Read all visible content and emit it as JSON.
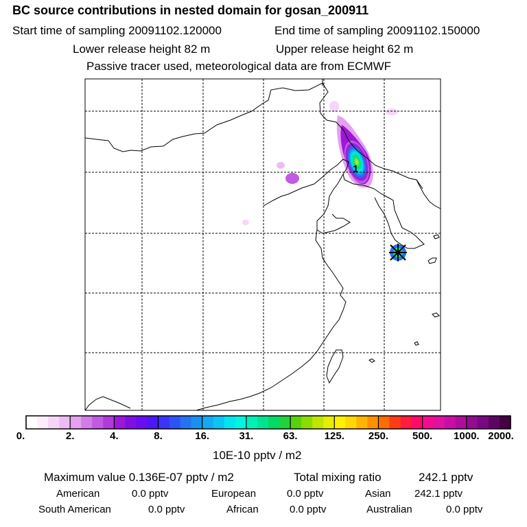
{
  "header": {
    "title": "BC  source contributions in nested domain for gosan_200911",
    "start_time": "Start time of sampling 20091102.120000",
    "end_time": "End time of sampling 20091102.150000",
    "lower_release": "Lower release height   82 m",
    "upper_release": "Upper release height   62 m",
    "tracer_note": "Passive tracer used, meteorological data are from ECMWF"
  },
  "map": {
    "station_marker_label": "1",
    "receptor_marker": "gosan-receptor-cross",
    "land_color": "#ffffff",
    "grid_style": "dashed"
  },
  "colorbar": {
    "colors": [
      "#ffffff",
      "#fdeefd",
      "#f6d6f8",
      "#eebcf4",
      "#e5a0f0",
      "#d37be8",
      "#c25ae2",
      "#b13ada",
      "#9d17d8",
      "#7f0fe3",
      "#6a0df0",
      "#4c16f8",
      "#3a34f8",
      "#2d52f6",
      "#2673f2",
      "#1c8ef2",
      "#15a9f4",
      "#0bc5f4",
      "#00e6f0",
      "#00f5e0",
      "#00f0b8",
      "#00e690",
      "#00dc66",
      "#22d23c",
      "#58d20e",
      "#8cdc00",
      "#bee600",
      "#e6ee00",
      "#fff000",
      "#ffd800",
      "#ffb400",
      "#ff9000",
      "#ff6c00",
      "#ff3c14",
      "#ff1c3c",
      "#ff0a6a",
      "#f40c90",
      "#e010a0",
      "#c80ea6",
      "#ae0c9c",
      "#940a90",
      "#7a0880",
      "#5e0464",
      "#440244"
    ],
    "tick_labels": [
      "0.",
      "2.",
      "4.",
      "8.",
      "16.",
      "31.",
      "63.",
      "125.",
      "250.",
      "500.",
      "1000.",
      "2000."
    ],
    "unit": "10E-10 pptv / m2"
  },
  "summary": {
    "max_value": "Maximum value  0.136E-07 pptv / m2",
    "total_mixing": "Total mixing ratio",
    "total_mixing_value": "242.1 pptv",
    "regions": [
      {
        "name": "American",
        "value": "0.0 pptv"
      },
      {
        "name": "European",
        "value": "0.0 pptv"
      },
      {
        "name": "Asian",
        "value": "242.1 pptv"
      },
      {
        "name": "South American",
        "value": "0.0 pptv"
      },
      {
        "name": "African",
        "value": "0.0 pptv"
      },
      {
        "name": "Australian",
        "value": "0.0 pptv"
      }
    ]
  }
}
